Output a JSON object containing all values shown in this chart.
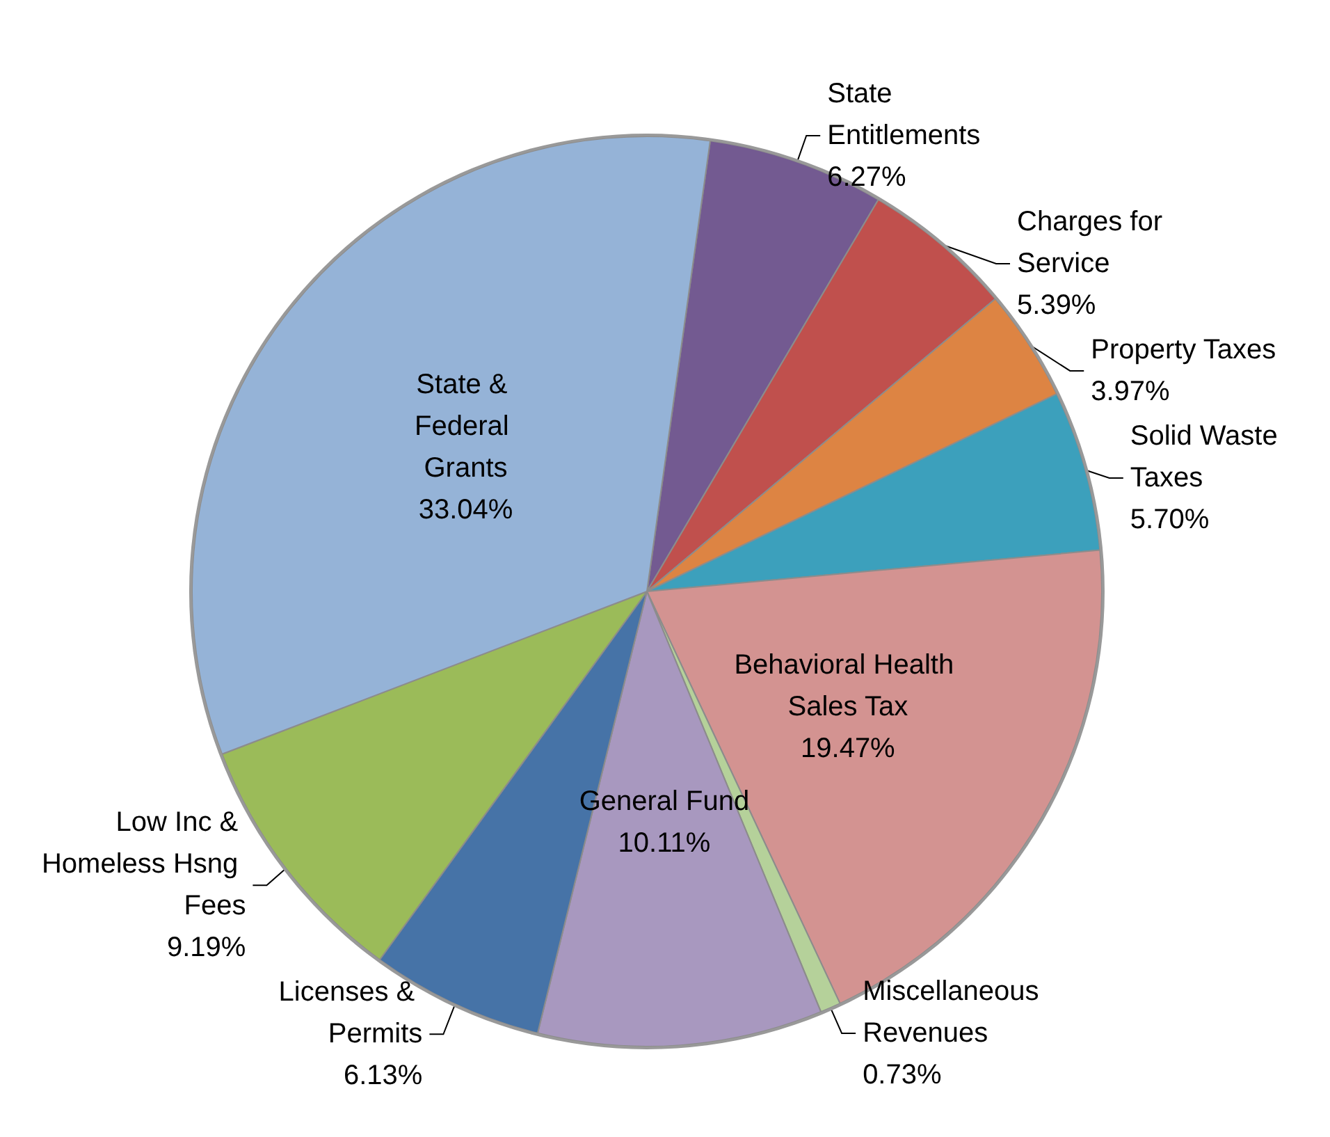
{
  "chart_data": {
    "type": "pie",
    "categories": [
      "State Entitlements",
      "Charges for Service",
      "Property Taxes",
      "Solid Waste Taxes",
      "Behavioral Health Sales Tax",
      "Miscellaneous Revenues",
      "General Fund",
      "Licenses & Permits",
      "Low Inc & Homeless Hsng Fees",
      "State & Federal Grants"
    ],
    "values": [
      6.27,
      5.39,
      3.97,
      5.7,
      19.47,
      0.73,
      10.11,
      6.13,
      9.19,
      33.04
    ],
    "value_labels": [
      "6.27%",
      "5.39%",
      "3.97%",
      "5.70%",
      "19.47%",
      "0.73%",
      "10.11%",
      "6.13%",
      "9.19%",
      "33.04%"
    ],
    "colors": [
      "#735a91",
      "#c0504d",
      "#dd8443",
      "#3ca0bc",
      "#d39391",
      "#b5d19a",
      "#a898bf",
      "#4673a7",
      "#9bbb59",
      "#95b3d7"
    ],
    "legend": false
  }
}
